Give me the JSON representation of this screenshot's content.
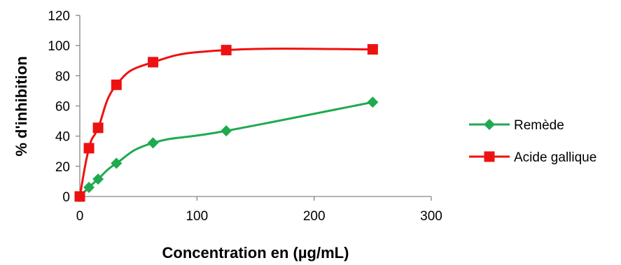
{
  "chart_data": {
    "type": "line",
    "title": "",
    "xlabel": "Concentration en (µg/mL)",
    "ylabel": "% d'inhibition",
    "xlim": [
      0,
      300
    ],
    "ylim": [
      0,
      120
    ],
    "xticks": [
      "0",
      "100",
      "200",
      "300"
    ],
    "yticks": [
      "0",
      "20",
      "40",
      "60",
      "80",
      "100",
      "120"
    ],
    "grid": false,
    "legend_position": "right",
    "series": [
      {
        "name": "Remède",
        "color": "#1faa50",
        "marker": "diamond",
        "smooth": true,
        "x": [
          0,
          7.8,
          15.6,
          31.25,
          62.5,
          125,
          250
        ],
        "y": [
          0,
          6,
          11.5,
          22,
          35.5,
          43.5,
          62.5
        ]
      },
      {
        "name": "Acide gallique",
        "color": "#ee1111",
        "marker": "square",
        "smooth": true,
        "x": [
          0,
          7.8,
          15.6,
          31.25,
          62.5,
          125,
          250
        ],
        "y": [
          0,
          32,
          45.5,
          74,
          89,
          97,
          97.5
        ]
      }
    ]
  }
}
